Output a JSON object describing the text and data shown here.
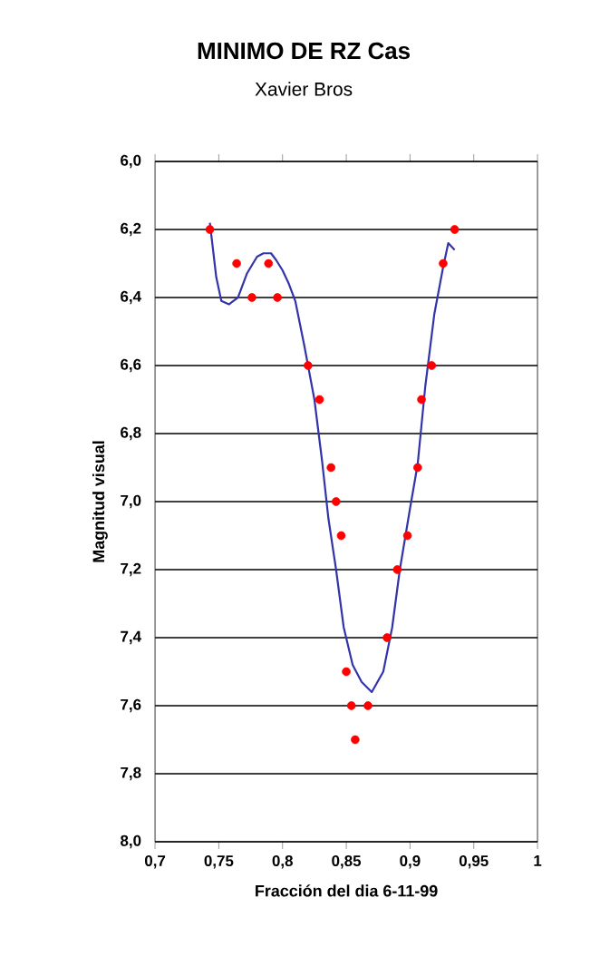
{
  "chart_data": {
    "type": "scatter",
    "title": "MINIMO DE RZ Cas",
    "subtitle": "Xavier Bros",
    "xlabel": "Fracción del dia 6-11-99",
    "ylabel": "Magnitud visual",
    "xlim": [
      0.7,
      1
    ],
    "xticks": [
      {
        "value": 0.7,
        "label": "0,7"
      },
      {
        "value": 0.75,
        "label": "0,75"
      },
      {
        "value": 0.8,
        "label": "0,8"
      },
      {
        "value": 0.85,
        "label": "0,85"
      },
      {
        "value": 0.9,
        "label": "0,9"
      },
      {
        "value": 0.95,
        "label": "0,95"
      },
      1
    ],
    "ylim": [
      8,
      6
    ],
    "yticks": [
      {
        "value": 6,
        "label": "6,0"
      },
      {
        "value": 6.2,
        "label": "6,2"
      },
      {
        "value": 6.4,
        "label": "6,4"
      },
      {
        "value": 6.6,
        "label": "6,6"
      },
      {
        "value": 6.8,
        "label": "6,8"
      },
      {
        "value": 7,
        "label": "7,0"
      },
      {
        "value": 7.2,
        "label": "7,2"
      },
      {
        "value": 7.4,
        "label": "7,4"
      },
      {
        "value": 7.6,
        "label": "7,6"
      },
      {
        "value": 7.8,
        "label": "7,8"
      },
      {
        "value": 8,
        "label": "8,0"
      }
    ],
    "grid": "y",
    "series": [
      {
        "type": "scatter",
        "marker": "circle",
        "color": "#ff0000",
        "x": [
          0.743,
          0.764,
          0.776,
          0.789,
          0.796,
          0.82,
          0.829,
          0.838,
          0.842,
          0.846,
          0.85,
          0.854,
          0.857,
          0.867,
          0.882,
          0.89,
          0.898,
          0.906,
          0.909,
          0.917,
          0.926,
          0.935
        ],
        "values": [
          6.2,
          6.3,
          6.4,
          6.3,
          6.4,
          6.6,
          6.7,
          6.9,
          7.0,
          7.1,
          7.5,
          7.6,
          7.7,
          7.6,
          7.4,
          7.2,
          7.1,
          6.9,
          6.7,
          6.6,
          6.3,
          6.2
        ]
      },
      {
        "type": "line",
        "marker": "none",
        "color": "#3333aa",
        "x": [
          0.743,
          0.748,
          0.752,
          0.758,
          0.765,
          0.772,
          0.78,
          0.785,
          0.791,
          0.795,
          0.8,
          0.805,
          0.81,
          0.817,
          0.825,
          0.831,
          0.836,
          0.842,
          0.848,
          0.855,
          0.862,
          0.87,
          0.879,
          0.886,
          0.892,
          0.9,
          0.906,
          0.912,
          0.919,
          0.926,
          0.93,
          0.935
        ],
        "values": [
          6.18,
          6.34,
          6.41,
          6.42,
          6.4,
          6.33,
          6.28,
          6.27,
          6.27,
          6.29,
          6.32,
          6.36,
          6.41,
          6.54,
          6.7,
          6.88,
          7.05,
          7.2,
          7.37,
          7.48,
          7.53,
          7.56,
          7.5,
          7.37,
          7.2,
          7.02,
          6.89,
          6.66,
          6.45,
          6.31,
          6.24,
          6.26
        ]
      }
    ]
  }
}
